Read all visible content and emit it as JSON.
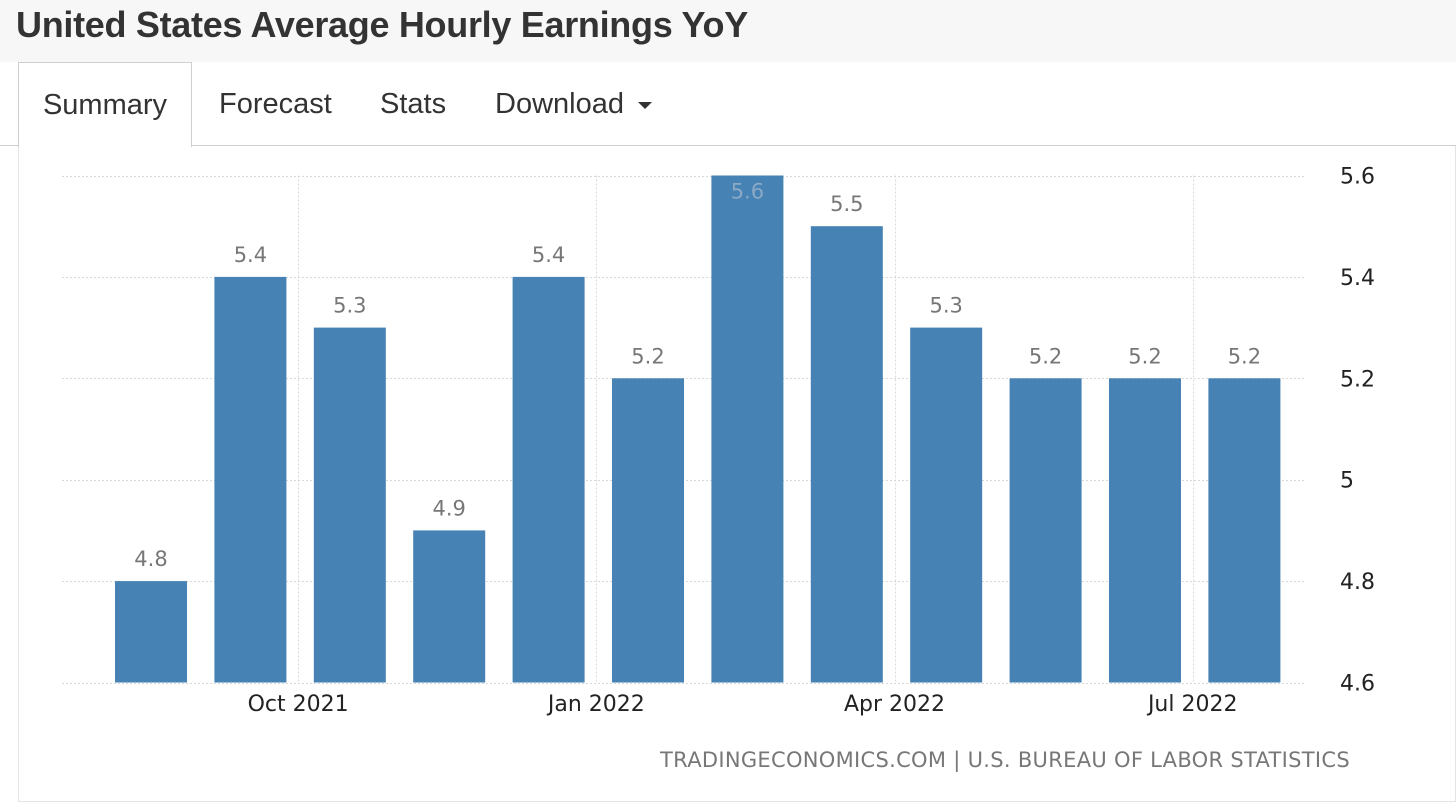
{
  "page": {
    "title": "United States Average Hourly Earnings YoY"
  },
  "tabs": [
    {
      "label": "Summary",
      "active": true
    },
    {
      "label": "Forecast",
      "active": false
    },
    {
      "label": "Stats",
      "active": false
    },
    {
      "label": "Download",
      "active": false,
      "has_dropdown": true
    }
  ],
  "colors": {
    "bar": "#4682b4",
    "bar_label": "#777777",
    "grid": "#d8d8d8"
  },
  "chart_data": {
    "type": "bar",
    "title": "",
    "xlabel": "",
    "ylabel": "",
    "categories": [
      "2021-08",
      "2021-09",
      "2021-10",
      "2021-11",
      "2021-12",
      "2022-01",
      "2022-02",
      "2022-03",
      "2022-04",
      "2022-05",
      "2022-06",
      "2022-07"
    ],
    "values": [
      4.8,
      5.4,
      5.3,
      4.9,
      5.4,
      5.2,
      5.6,
      5.5,
      5.3,
      5.2,
      5.2,
      5.2
    ],
    "value_labels": [
      "4.8",
      "5.4",
      "5.3",
      "4.9",
      "5.4",
      "5.2",
      "5.6",
      "5.5",
      "5.3",
      "5.2",
      "5.2",
      "5.2"
    ],
    "ylim": [
      4.6,
      5.6
    ],
    "yticks": [
      4.6,
      4.8,
      5,
      5.2,
      5.4,
      5.6
    ],
    "ytick_labels": [
      "4.6",
      "4.8",
      "5",
      "5.2",
      "5.4",
      "5.6"
    ],
    "xtick_labels": [
      {
        "label": "Oct 2021",
        "category_index": 1
      },
      {
        "label": "Jan 2022",
        "category_index": 4
      },
      {
        "label": "Apr 2022",
        "category_index": 7
      },
      {
        "label": "Jul 2022",
        "category_index": 10
      }
    ],
    "yaxis_side": "right",
    "grid": true,
    "legend": "none"
  },
  "source": {
    "text": "TRADINGECONOMICS.COM | U.S. BUREAU OF LABOR STATISTICS"
  }
}
